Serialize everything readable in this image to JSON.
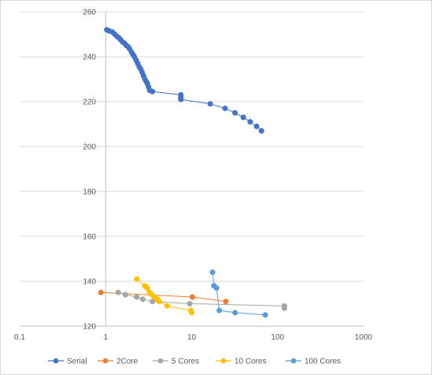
{
  "chart_data": {
    "type": "scatter",
    "x_scale": "log",
    "xlim": [
      0.1,
      1000
    ],
    "ylim": [
      120,
      260
    ],
    "x_ticks": [
      "0.1",
      "1",
      "10",
      "100",
      "1000"
    ],
    "y_ticks": [
      "120",
      "140",
      "160",
      "180",
      "200",
      "220",
      "240",
      "260"
    ],
    "grid": "horizontal",
    "legend_position": "bottom",
    "series": [
      {
        "name": "Serial",
        "color": "#4472C4",
        "points": [
          [
            1.03,
            252
          ],
          [
            1.1,
            251.5
          ],
          [
            1.2,
            251
          ],
          [
            1.28,
            250
          ],
          [
            1.36,
            249
          ],
          [
            1.42,
            248.5
          ],
          [
            1.5,
            247.5
          ],
          [
            1.58,
            246.5
          ],
          [
            1.66,
            246
          ],
          [
            1.74,
            245
          ],
          [
            1.82,
            244.5
          ],
          [
            1.9,
            243.5
          ],
          [
            2.0,
            242
          ],
          [
            2.08,
            241
          ],
          [
            2.16,
            240
          ],
          [
            2.26,
            238.5
          ],
          [
            2.36,
            237
          ],
          [
            2.46,
            235.5
          ],
          [
            2.56,
            234.5
          ],
          [
            2.66,
            233
          ],
          [
            2.76,
            231.5
          ],
          [
            2.86,
            230
          ],
          [
            2.96,
            229
          ],
          [
            3.06,
            228
          ],
          [
            3.16,
            226.5
          ],
          [
            3.26,
            225
          ],
          [
            3.5,
            224.5
          ],
          [
            7.5,
            223
          ],
          [
            7.5,
            222
          ],
          [
            7.5,
            221
          ],
          [
            16.5,
            219
          ],
          [
            24.5,
            217
          ],
          [
            32,
            215
          ],
          [
            40,
            213
          ],
          [
            48,
            211
          ],
          [
            57,
            209
          ],
          [
            65,
            207
          ]
        ]
      },
      {
        "name": "2Core",
        "color": "#ED7D31",
        "points": [
          [
            0.88,
            135
          ],
          [
            10.2,
            133
          ],
          [
            25,
            131
          ]
        ]
      },
      {
        "name": "5 Cores",
        "color": "#A5A5A5",
        "points": [
          [
            1.4,
            135
          ],
          [
            1.7,
            134
          ],
          [
            2.3,
            133
          ],
          [
            2.7,
            132
          ],
          [
            3.5,
            131
          ],
          [
            9.5,
            130
          ],
          [
            120,
            129
          ],
          [
            120,
            128
          ]
        ]
      },
      {
        "name": "10 Cores",
        "color": "#FFC000",
        "points": [
          [
            2.3,
            141
          ],
          [
            2.85,
            138
          ],
          [
            3.05,
            137
          ],
          [
            3.25,
            135
          ],
          [
            3.45,
            134
          ],
          [
            3.7,
            133
          ],
          [
            4.0,
            132
          ],
          [
            4.2,
            131
          ],
          [
            5.2,
            129
          ],
          [
            9.8,
            127
          ],
          [
            10.0,
            126
          ]
        ]
      },
      {
        "name": "100 Cores",
        "color": "#5B9BD5",
        "points": [
          [
            17.5,
            144
          ],
          [
            18.2,
            138
          ],
          [
            19.5,
            137
          ],
          [
            21,
            127
          ],
          [
            32,
            126
          ],
          [
            72,
            125
          ]
        ]
      }
    ]
  }
}
